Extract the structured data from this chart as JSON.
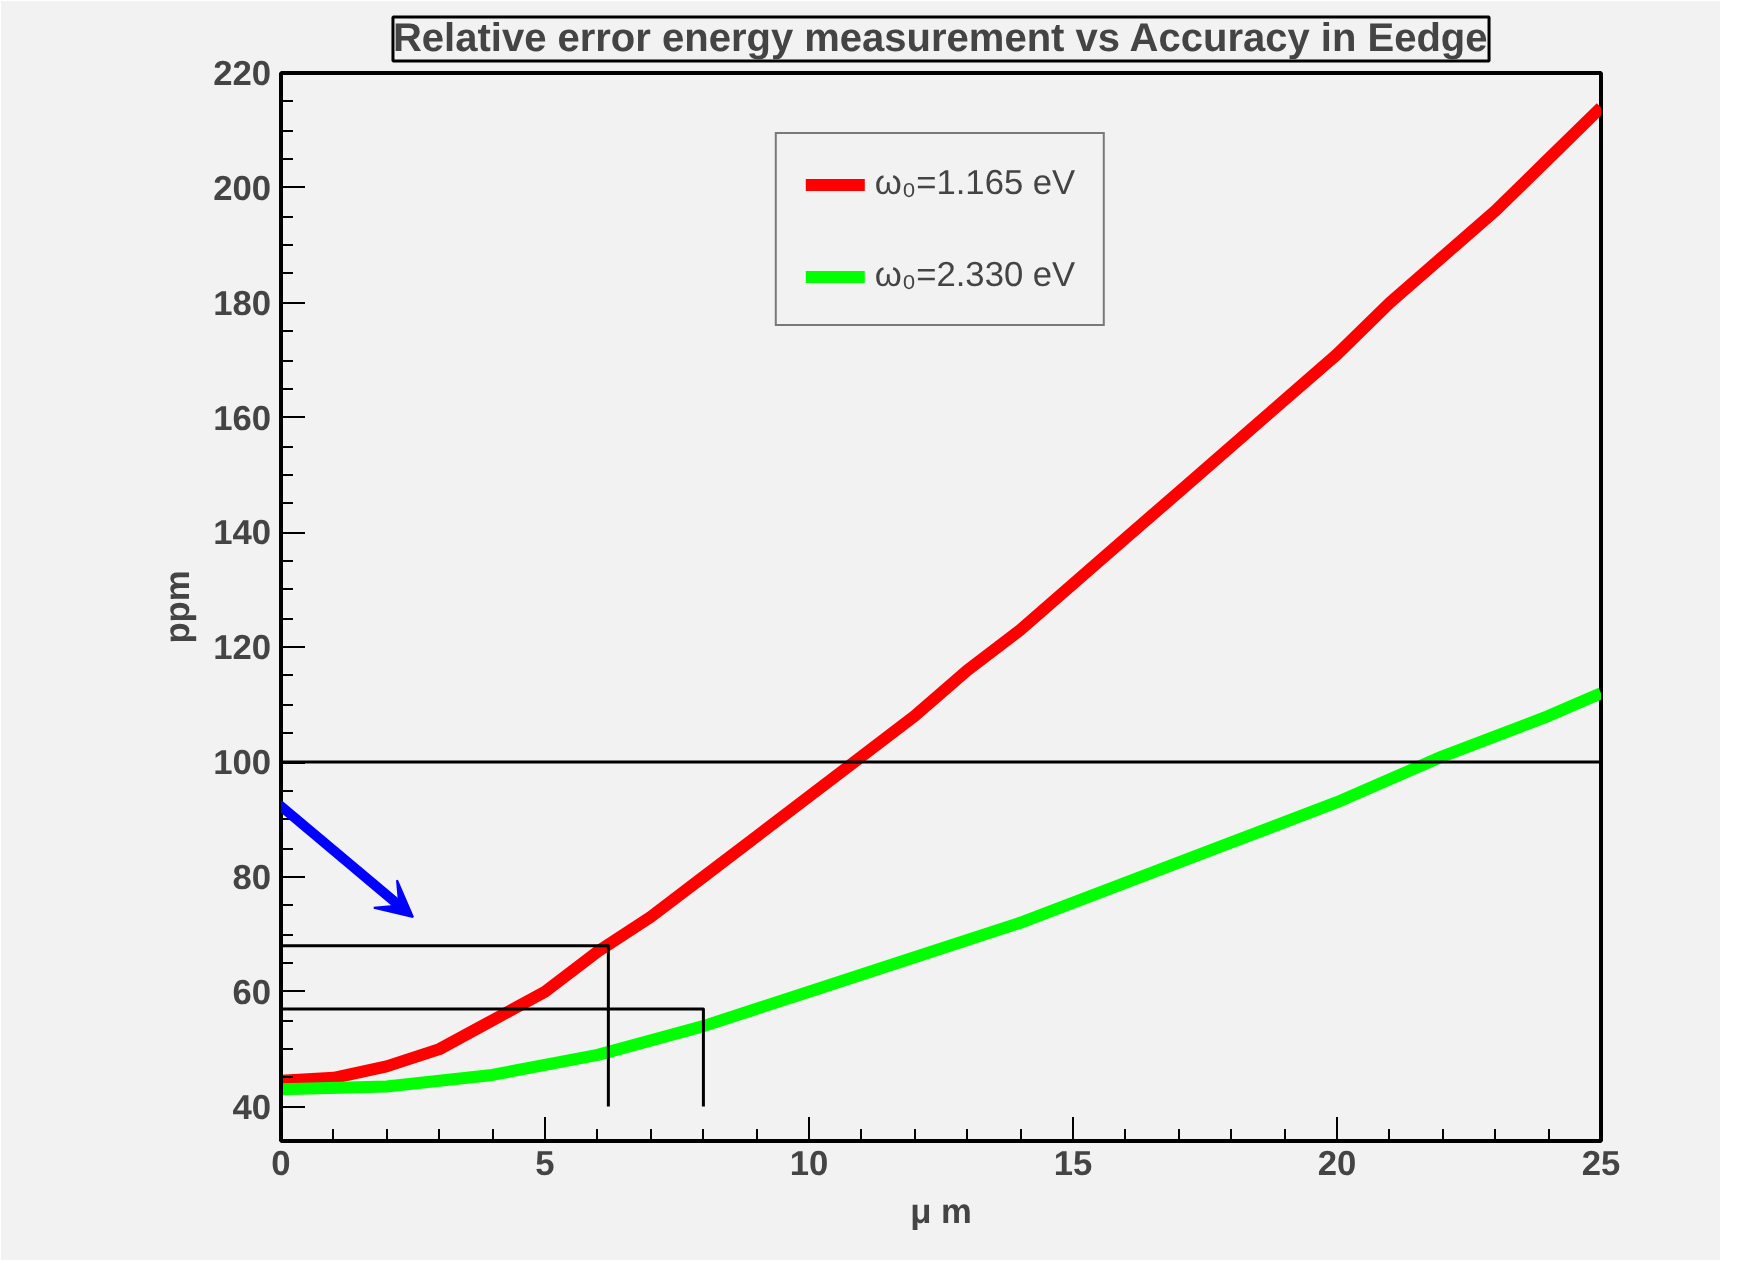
{
  "chart_data": {
    "type": "line",
    "title": "Relative error energy measurement vs Accuracy in Eedge",
    "xlabel": "μ m",
    "ylabel": "ppm",
    "xlim": [
      0,
      25
    ],
    "ylim": [
      34,
      220
    ],
    "xticks": [
      0,
      5,
      10,
      15,
      20,
      25
    ],
    "yticks": [
      40,
      60,
      80,
      100,
      120,
      140,
      160,
      180,
      200,
      220
    ],
    "grid": false,
    "legend": "top",
    "line_style": "solid",
    "series": [
      {
        "name": "ω₀=1.165 eV",
        "color": "#ff0000",
        "x": [
          0,
          1,
          2,
          3,
          4,
          5,
          6,
          7,
          8,
          9,
          10,
          11,
          12,
          13,
          14,
          15,
          16,
          17,
          18,
          19,
          20,
          21,
          22,
          23,
          24,
          25
        ],
        "values": [
          44.5,
          45,
          47,
          50,
          55,
          60,
          67,
          73,
          80,
          87,
          94,
          101,
          108,
          116,
          123,
          131,
          139,
          147,
          155,
          163,
          171,
          180,
          188,
          196,
          205,
          214
        ]
      },
      {
        "name": "ω₀=2.330 eV",
        "color": "#00ff00",
        "x": [
          0,
          2,
          4,
          6,
          8,
          10,
          12,
          14,
          16,
          18,
          20,
          22,
          24,
          25
        ],
        "values": [
          43,
          43.5,
          45.5,
          49,
          54,
          60,
          66,
          72,
          79,
          86,
          93,
          101,
          108,
          112
        ]
      },
      {
        "color": "#000000",
        "x": [
          0,
          6.2,
          6.2
        ],
        "values": [
          68,
          68,
          40
        ]
      },
      {
        "color": "#000000",
        "x": [
          0,
          8,
          8
        ],
        "values": [
          57,
          57,
          40
        ]
      }
    ],
    "ref_lines": [
      {
        "axis": "y",
        "value": 100,
        "color": "#000000"
      }
    ]
  }
}
